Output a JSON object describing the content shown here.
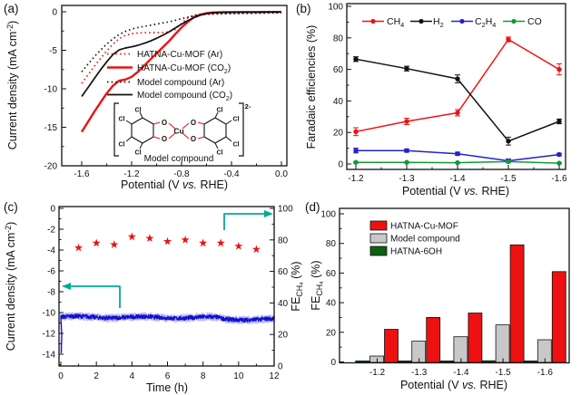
{
  "panel_tags": {
    "a": "(a)",
    "b": "(b)",
    "c": "(c)",
    "d": "(d)"
  },
  "chart_data": [
    {
      "id": "a",
      "type": "line",
      "xlabel": [
        "Potential (V ",
        {
          "i": "vs."
        },
        " RHE)"
      ],
      "ylabel": [
        "Current density (mA cm",
        {
          "sup": "-2"
        },
        ")"
      ],
      "xticks": [
        -1.6,
        -1.2,
        -0.8,
        -0.4,
        0.0
      ],
      "xtick_labels": [
        "-1.6",
        "-1.2",
        "-0.8",
        "-0.4",
        "0.0"
      ],
      "yticks": [
        0,
        -5,
        -10,
        -15,
        -20
      ],
      "ytick_labels": [
        "0",
        "-5",
        "-10",
        "-15",
        "-20"
      ],
      "xlim": [
        -1.76,
        0.04
      ],
      "ylim": [
        -20.8,
        0.8
      ],
      "x": [
        -1.6,
        -1.55,
        -1.5,
        -1.45,
        -1.4,
        -1.35,
        -1.3,
        -1.25,
        -1.2,
        -1.15,
        -1.1,
        -1.05,
        -1.0,
        -0.95,
        -0.9,
        -0.85,
        -0.8,
        -0.75,
        -0.7,
        -0.65,
        -0.6,
        -0.55,
        -0.5,
        -0.45,
        -0.4,
        -0.3,
        -0.2,
        -0.1,
        0.0
      ],
      "series": [
        {
          "name": [
            "HATNA-Cu-MOF (Ar)"
          ],
          "color": "#ee1111",
          "dash": "dotted",
          "width": 1.7,
          "y": [
            -9.3,
            -8.2,
            -7.1,
            -6.1,
            -5.1,
            -4.2,
            -3.5,
            -3.05,
            -2.85,
            -2.75,
            -2.72,
            -2.7,
            -2.7,
            -2.68,
            -2.6,
            -2.3,
            -1.5,
            -0.8,
            -0.45,
            -0.33,
            -0.28,
            -0.25,
            -0.23,
            -0.22,
            -0.2,
            -0.18,
            -0.15,
            -0.12,
            -0.1
          ]
        },
        {
          "name": [
            "HATNA-Cu-MOF (CO",
            {
              "sub": "2"
            },
            ")"
          ],
          "color": "#ee1111",
          "dash": "solid",
          "width": 2.4,
          "y": [
            -15.6,
            -14.3,
            -13.0,
            -11.8,
            -10.6,
            -9.6,
            -8.95,
            -8.8,
            -8.45,
            -7.8,
            -7.0,
            -6.2,
            -5.4,
            -4.6,
            -3.8,
            -2.9,
            -2.05,
            -1.3,
            -0.7,
            -0.35,
            -0.18,
            -0.1,
            -0.07,
            -0.05,
            -0.05,
            -0.04,
            -0.03,
            -0.02,
            -0.02
          ]
        },
        {
          "name": [
            "Model compound (Ar)"
          ],
          "color": "#111111",
          "dash": "dotted",
          "width": 1.7,
          "y": [
            -7.8,
            -6.8,
            -5.85,
            -5.0,
            -4.2,
            -3.5,
            -2.95,
            -2.55,
            -2.25,
            -2.05,
            -1.9,
            -1.75,
            -1.6,
            -1.45,
            -1.3,
            -1.1,
            -0.9,
            -0.7,
            -0.52,
            -0.4,
            -0.33,
            -0.29,
            -0.27,
            -0.25,
            -0.24,
            -0.21,
            -0.18,
            -0.15,
            -0.13
          ]
        },
        {
          "name": [
            "Model compound (CO",
            {
              "sub": "2"
            },
            ")"
          ],
          "color": "#111111",
          "dash": "solid",
          "width": 1.7,
          "y": [
            -11.0,
            -9.85,
            -8.7,
            -7.55,
            -6.5,
            -5.55,
            -4.95,
            -4.7,
            -4.55,
            -4.35,
            -4.1,
            -3.8,
            -3.45,
            -3.05,
            -2.6,
            -2.1,
            -1.6,
            -1.15,
            -0.75,
            -0.45,
            -0.25,
            -0.13,
            -0.08,
            -0.06,
            -0.05,
            -0.04,
            -0.03,
            -0.02,
            -0.02
          ]
        }
      ],
      "inset": {
        "caption": "Model compound",
        "charge": "2-",
        "cu": "Cu",
        "o": "O",
        "cl": "Cl"
      }
    },
    {
      "id": "b",
      "type": "line-markers",
      "xlabel": [
        "Potential (V ",
        {
          "i": "vs."
        },
        " RHE)"
      ],
      "ylabel": [
        "Faradaic efficiencies (%)"
      ],
      "cat_labels": [
        "-1.2",
        "-1.3",
        "-1.4",
        "-1.5",
        "-1.6"
      ],
      "yticks": [
        0,
        20,
        40,
        60,
        80,
        100
      ],
      "ylim": [
        -4,
        103
      ],
      "series": [
        {
          "name": [
            "CH",
            {
              "sub": "4"
            }
          ],
          "color": "#ee1111",
          "values": [
            20.5,
            27,
            32.5,
            79,
            60
          ],
          "errors": [
            2.5,
            2,
            2,
            1.5,
            3.5
          ]
        },
        {
          "name": [
            "H",
            {
              "sub": "2"
            }
          ],
          "color": "#111111",
          "values": [
            66.5,
            60.5,
            54,
            14.5,
            27
          ],
          "errors": [
            1.5,
            1.5,
            2.5,
            2.5,
            1.5
          ]
        },
        {
          "name": [
            "C",
            {
              "sub": "2"
            },
            "H",
            {
              "sub": "4"
            }
          ],
          "color": "#2222cc",
          "values": [
            8.5,
            8.5,
            6.5,
            2,
            6
          ],
          "errors": [
            1.5,
            1,
            1,
            1.2,
            0.8
          ]
        },
        {
          "name": [
            "CO"
          ],
          "color": "#119933",
          "values": [
            1,
            1,
            0.8,
            1.5,
            0.5
          ],
          "errors": [
            0.3,
            0.3,
            0.3,
            0.5,
            0.2
          ]
        }
      ]
    },
    {
      "id": "c",
      "type": "dual-axis-stability",
      "xlabel": [
        "Time (h)"
      ],
      "ylabel_left": [
        "Current density (mA cm",
        {
          "sup": "-2"
        },
        ")"
      ],
      "ylabel_right": [
        "FE",
        {
          "sub": "CH₄"
        },
        " (%)"
      ],
      "xticks": [
        0,
        2,
        4,
        6,
        8,
        10,
        12
      ],
      "xtick_labels": [
        "0",
        "2",
        "4",
        "6",
        "8",
        "10",
        "12"
      ],
      "yticks_left": [
        0,
        -2,
        -4,
        -6,
        -8,
        -10,
        -12,
        -14
      ],
      "ytick_labels_left": [
        "0",
        "-2",
        "-4",
        "-6",
        "-8",
        "-10",
        "-12",
        "-14"
      ],
      "yticks_right": [
        0,
        20,
        40,
        60,
        80,
        100
      ],
      "ytick_labels_right": [
        "0",
        "20",
        "40",
        "60",
        "80",
        "100"
      ],
      "current_trace": {
        "color": "#1111cc",
        "halo_color": "#8888ee",
        "baseline": -10.5,
        "noise_amp": 0.28,
        "end_drift": -0.25,
        "start_spike": -13.9
      },
      "stars": {
        "color": "#ee1111",
        "t": [
          1,
          2,
          3,
          4,
          5,
          6,
          7,
          8,
          9,
          10,
          11
        ],
        "fe": [
          75,
          78,
          77,
          82,
          81,
          79,
          80,
          78,
          78,
          76,
          74
        ]
      },
      "arrow_color": "#00ab96"
    },
    {
      "id": "d",
      "type": "bar",
      "xlabel": [
        "Potential (V ",
        {
          "i": "vs."
        },
        " RHE)"
      ],
      "ylabel": [
        "FE",
        {
          "sub": "CH₄"
        },
        " (%)"
      ],
      "cat_labels": [
        "-1.2",
        "-1.3",
        "-1.4",
        "-1.5",
        "-1.6"
      ],
      "yticks": [
        0,
        20,
        40,
        60,
        80,
        100
      ],
      "ylim": [
        -1.2,
        103
      ],
      "series": [
        {
          "name": "HATNA-6OH",
          "color": "#0e5f12",
          "values": [
            0.7,
            0.7,
            0.7,
            0.8,
            0.7
          ]
        },
        {
          "name": "Model compound",
          "color": "#c8c8c8",
          "values": [
            4,
            14,
            17,
            25,
            15
          ]
        },
        {
          "name": "HATNA-Cu-MOF",
          "color": "#ee1111",
          "values": [
            22,
            30,
            33,
            79,
            61
          ]
        }
      ],
      "legend_order": [
        "HATNA-Cu-MOF",
        "Model compound",
        "HATNA-6OH"
      ]
    }
  ]
}
